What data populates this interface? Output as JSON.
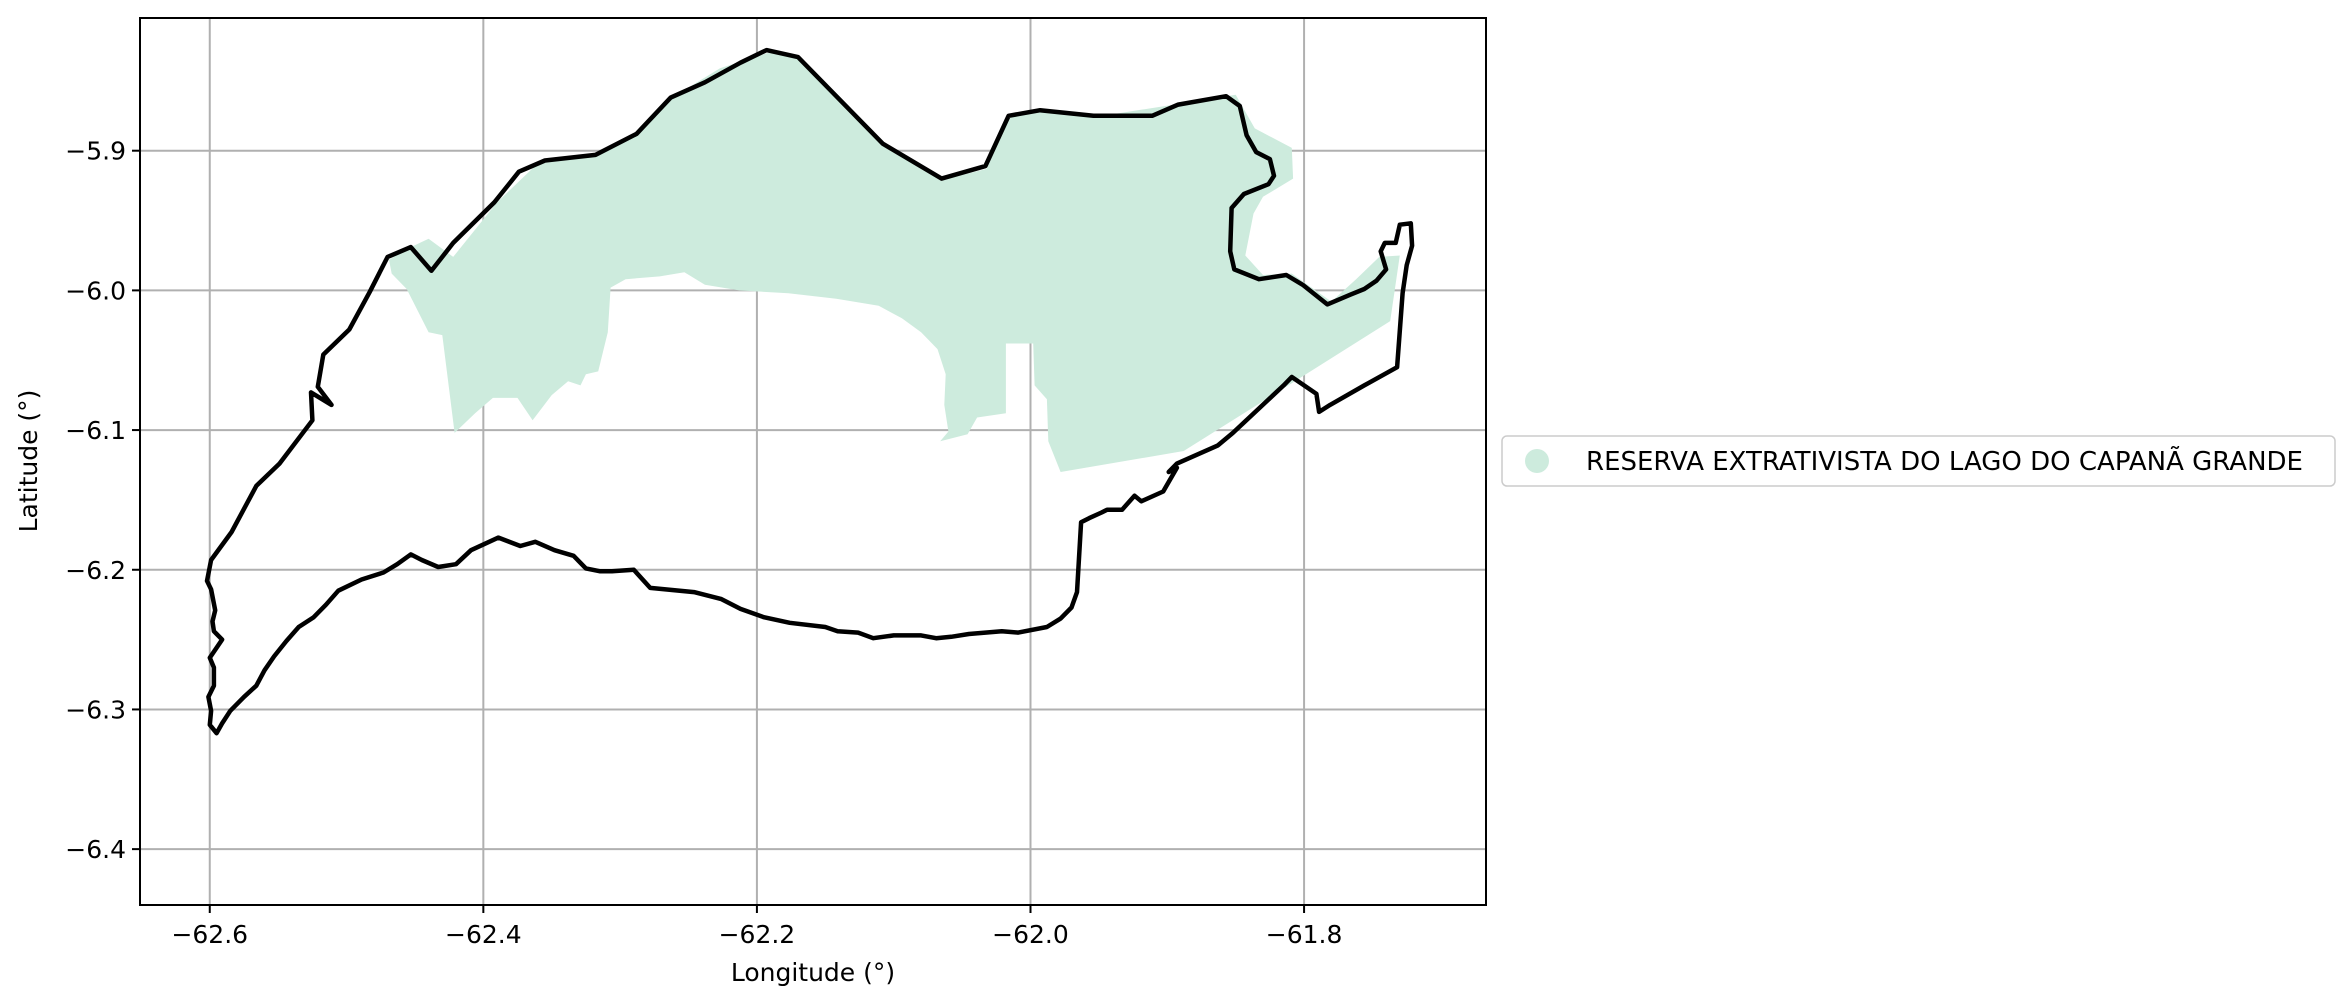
{
  "chart_data": {
    "type": "map",
    "xlabel": "Longitude (°)",
    "ylabel": "Latitude (°)",
    "xlim": [
      -62.651,
      -61.667
    ],
    "ylim": [
      -6.44,
      -5.805
    ],
    "xticks": [
      -62.6,
      -62.4,
      -62.2,
      -62.0,
      -61.8
    ],
    "xtick_labels": [
      "−62.6",
      "−62.4",
      "−62.2",
      "−62.0",
      "−61.8"
    ],
    "yticks": [
      -5.9,
      -6.0,
      -6.1,
      -6.2,
      -6.3,
      -6.4
    ],
    "ytick_labels": [
      "−5.9",
      "−6.0",
      "−6.1",
      "−6.2",
      "−6.3",
      "−6.4"
    ],
    "grid": true,
    "legend_placement": "center-right outside",
    "colors": {
      "fill": "#cdebdd",
      "outline": "#000000",
      "grid": "#b0b0b0"
    },
    "series": [
      {
        "name": "RESERVA EXTRATIVISTA DO LAGO DO CAPANÃ GRANDE",
        "kind": "filled-polygon"
      }
    ],
    "reserve_fill_polygon": [
      [
        -62.467,
        -5.988
      ],
      [
        -62.456,
        -5.999
      ],
      [
        -62.44,
        -6.03
      ],
      [
        -62.43,
        -6.032
      ],
      [
        -62.421,
        -6.102
      ],
      [
        -62.406,
        -6.088
      ],
      [
        -62.393,
        -6.077
      ],
      [
        -62.375,
        -6.077
      ],
      [
        -62.364,
        -6.093
      ],
      [
        -62.35,
        -6.075
      ],
      [
        -62.338,
        -6.065
      ],
      [
        -62.329,
        -6.068
      ],
      [
        -62.325,
        -6.06
      ],
      [
        -62.316,
        -6.058
      ],
      [
        -62.309,
        -6.03
      ],
      [
        -62.307,
        -5.998
      ],
      [
        -62.296,
        -5.992
      ],
      [
        -62.271,
        -5.99
      ],
      [
        -62.253,
        -5.987
      ],
      [
        -62.238,
        -5.996
      ],
      [
        -62.213,
        -6.0
      ],
      [
        -62.177,
        -6.002
      ],
      [
        -62.142,
        -6.006
      ],
      [
        -62.111,
        -6.011
      ],
      [
        -62.094,
        -6.02
      ],
      [
        -62.08,
        -6.03
      ],
      [
        -62.068,
        -6.042
      ],
      [
        -62.062,
        -6.06
      ],
      [
        -62.063,
        -6.082
      ],
      [
        -62.06,
        -6.101
      ],
      [
        -62.066,
        -6.108
      ],
      [
        -62.046,
        -6.103
      ],
      [
        -62.039,
        -6.091
      ],
      [
        -62.018,
        -6.088
      ],
      [
        -62.018,
        -6.038
      ],
      [
        -61.998,
        -6.038
      ],
      [
        -61.997,
        -6.068
      ],
      [
        -61.988,
        -6.078
      ],
      [
        -61.987,
        -6.108
      ],
      [
        -61.978,
        -6.13
      ],
      [
        -61.888,
        -6.115
      ],
      [
        -61.805,
        -6.064
      ],
      [
        -61.737,
        -6.022
      ],
      [
        -61.73,
        -5.975
      ],
      [
        -61.745,
        -5.976
      ],
      [
        -61.762,
        -5.992
      ],
      [
        -61.78,
        -6.008
      ],
      [
        -61.809,
        -5.988
      ],
      [
        -61.83,
        -5.989
      ],
      [
        -61.843,
        -5.975
      ],
      [
        -61.837,
        -5.945
      ],
      [
        -61.83,
        -5.933
      ],
      [
        -61.808,
        -5.92
      ],
      [
        -61.809,
        -5.898
      ],
      [
        -61.836,
        -5.884
      ],
      [
        -61.85,
        -5.86
      ],
      [
        -61.895,
        -5.867
      ],
      [
        -61.954,
        -5.876
      ],
      [
        -61.99,
        -5.87
      ],
      [
        -62.016,
        -5.876
      ],
      [
        -62.032,
        -5.913
      ],
      [
        -62.065,
        -5.921
      ],
      [
        -62.108,
        -5.896
      ],
      [
        -62.146,
        -5.857
      ],
      [
        -62.172,
        -5.832
      ],
      [
        -62.192,
        -5.83
      ],
      [
        -62.227,
        -5.841
      ],
      [
        -62.262,
        -5.862
      ],
      [
        -62.288,
        -5.888
      ],
      [
        -62.318,
        -5.904
      ],
      [
        -62.359,
        -5.908
      ],
      [
        -62.39,
        -5.937
      ],
      [
        -62.422,
        -5.976
      ],
      [
        -62.44,
        -5.963
      ],
      [
        -62.453,
        -5.969
      ],
      [
        -62.469,
        -5.978
      ]
    ],
    "outline_polygon": [
      [
        -62.47,
        -5.976
      ],
      [
        -62.453,
        -5.969
      ],
      [
        -62.438,
        -5.986
      ],
      [
        -62.422,
        -5.966
      ],
      [
        -62.392,
        -5.937
      ],
      [
        -62.374,
        -5.915
      ],
      [
        -62.355,
        -5.907
      ],
      [
        -62.318,
        -5.903
      ],
      [
        -62.288,
        -5.888
      ],
      [
        -62.263,
        -5.862
      ],
      [
        -62.238,
        -5.851
      ],
      [
        -62.212,
        -5.837
      ],
      [
        -62.193,
        -5.828
      ],
      [
        -62.17,
        -5.833
      ],
      [
        -62.142,
        -5.861
      ],
      [
        -62.108,
        -5.895
      ],
      [
        -62.065,
        -5.92
      ],
      [
        -62.033,
        -5.911
      ],
      [
        -62.016,
        -5.875
      ],
      [
        -61.993,
        -5.871
      ],
      [
        -61.954,
        -5.875
      ],
      [
        -61.911,
        -5.875
      ],
      [
        -61.892,
        -5.867
      ],
      [
        -61.857,
        -5.861
      ],
      [
        -61.847,
        -5.868
      ],
      [
        -61.842,
        -5.889
      ],
      [
        -61.835,
        -5.901
      ],
      [
        -61.825,
        -5.906
      ],
      [
        -61.822,
        -5.918
      ],
      [
        -61.826,
        -5.924
      ],
      [
        -61.844,
        -5.931
      ],
      [
        -61.853,
        -5.941
      ],
      [
        -61.854,
        -5.972
      ],
      [
        -61.851,
        -5.985
      ],
      [
        -61.833,
        -5.992
      ],
      [
        -61.813,
        -5.989
      ],
      [
        -61.801,
        -5.996
      ],
      [
        -61.783,
        -6.01
      ],
      [
        -61.766,
        -6.003
      ],
      [
        -61.756,
        -5.999
      ],
      [
        -61.747,
        -5.993
      ],
      [
        -61.74,
        -5.985
      ],
      [
        -61.744,
        -5.972
      ],
      [
        -61.741,
        -5.966
      ],
      [
        -61.733,
        -5.966
      ],
      [
        -61.73,
        -5.953
      ],
      [
        -61.722,
        -5.952
      ],
      [
        -61.721,
        -5.968
      ],
      [
        -61.725,
        -5.982
      ],
      [
        -61.728,
        -6.002
      ],
      [
        -61.732,
        -6.055
      ],
      [
        -61.756,
        -6.068
      ],
      [
        -61.781,
        -6.082
      ],
      [
        -61.789,
        -6.087
      ],
      [
        -61.791,
        -6.074
      ],
      [
        -61.809,
        -6.062
      ],
      [
        -61.815,
        -6.068
      ],
      [
        -61.852,
        -6.102
      ],
      [
        -61.863,
        -6.111
      ],
      [
        -61.893,
        -6.124
      ],
      [
        -61.899,
        -6.13
      ],
      [
        -61.893,
        -6.127
      ],
      [
        -61.903,
        -6.144
      ],
      [
        -61.919,
        -6.151
      ],
      [
        -61.924,
        -6.147
      ],
      [
        -61.933,
        -6.157
      ],
      [
        -61.944,
        -6.157
      ],
      [
        -61.948,
        -6.159
      ],
      [
        -61.957,
        -6.163
      ],
      [
        -61.963,
        -6.166
      ],
      [
        -61.966,
        -6.216
      ],
      [
        -61.97,
        -6.227
      ],
      [
        -61.978,
        -6.235
      ],
      [
        -61.988,
        -6.241
      ],
      [
        -62.009,
        -6.245
      ],
      [
        -62.021,
        -6.244
      ],
      [
        -62.045,
        -6.246
      ],
      [
        -62.058,
        -6.248
      ],
      [
        -62.069,
        -6.249
      ],
      [
        -62.08,
        -6.247
      ],
      [
        -62.1,
        -6.247
      ],
      [
        -62.115,
        -6.249
      ],
      [
        -62.126,
        -6.245
      ],
      [
        -62.141,
        -6.244
      ],
      [
        -62.15,
        -6.241
      ],
      [
        -62.176,
        -6.238
      ],
      [
        -62.195,
        -6.234
      ],
      [
        -62.212,
        -6.228
      ],
      [
        -62.226,
        -6.221
      ],
      [
        -62.246,
        -6.216
      ],
      [
        -62.278,
        -6.213
      ],
      [
        -62.29,
        -6.2
      ],
      [
        -62.306,
        -6.201
      ],
      [
        -62.315,
        -6.201
      ],
      [
        -62.325,
        -6.199
      ],
      [
        -62.334,
        -6.19
      ],
      [
        -62.348,
        -6.186
      ],
      [
        -62.362,
        -6.18
      ],
      [
        -62.373,
        -6.183
      ],
      [
        -62.389,
        -6.177
      ],
      [
        -62.409,
        -6.186
      ],
      [
        -62.42,
        -6.196
      ],
      [
        -62.433,
        -6.198
      ],
      [
        -62.445,
        -6.193
      ],
      [
        -62.453,
        -6.189
      ],
      [
        -62.463,
        -6.196
      ],
      [
        -62.473,
        -6.202
      ],
      [
        -62.489,
        -6.207
      ],
      [
        -62.506,
        -6.215
      ],
      [
        -62.515,
        -6.225
      ],
      [
        -62.524,
        -6.234
      ],
      [
        -62.535,
        -6.241
      ],
      [
        -62.544,
        -6.251
      ],
      [
        -62.553,
        -6.262
      ],
      [
        -62.56,
        -6.272
      ],
      [
        -62.566,
        -6.283
      ],
      [
        -62.575,
        -6.291
      ],
      [
        -62.585,
        -6.301
      ],
      [
        -62.591,
        -6.31
      ],
      [
        -62.595,
        -6.317
      ],
      [
        -62.6,
        -6.311
      ],
      [
        -62.599,
        -6.301
      ],
      [
        -62.601,
        -6.291
      ],
      [
        -62.597,
        -6.283
      ],
      [
        -62.597,
        -6.27
      ],
      [
        -62.6,
        -6.263
      ],
      [
        -62.591,
        -6.25
      ],
      [
        -62.597,
        -6.244
      ],
      [
        -62.598,
        -6.237
      ],
      [
        -62.596,
        -6.229
      ],
      [
        -62.599,
        -6.214
      ],
      [
        -62.602,
        -6.208
      ],
      [
        -62.599,
        -6.193
      ],
      [
        -62.584,
        -6.173
      ],
      [
        -62.566,
        -6.14
      ],
      [
        -62.549,
        -6.124
      ],
      [
        -62.525,
        -6.093
      ],
      [
        -62.526,
        -6.073
      ],
      [
        -62.511,
        -6.082
      ],
      [
        -62.521,
        -6.069
      ],
      [
        -62.517,
        -6.046
      ],
      [
        -62.498,
        -6.028
      ],
      [
        -62.483,
        -6.001
      ],
      [
        -62.47,
        -5.976
      ]
    ]
  },
  "axes": {
    "xlabel": "Longitude (°)",
    "ylabel": "Latitude (°)"
  },
  "legend": {
    "label": "RESERVA EXTRATIVISTA DO LAGO DO CAPANÃ GRANDE",
    "marker_color": "#cdebdd"
  }
}
